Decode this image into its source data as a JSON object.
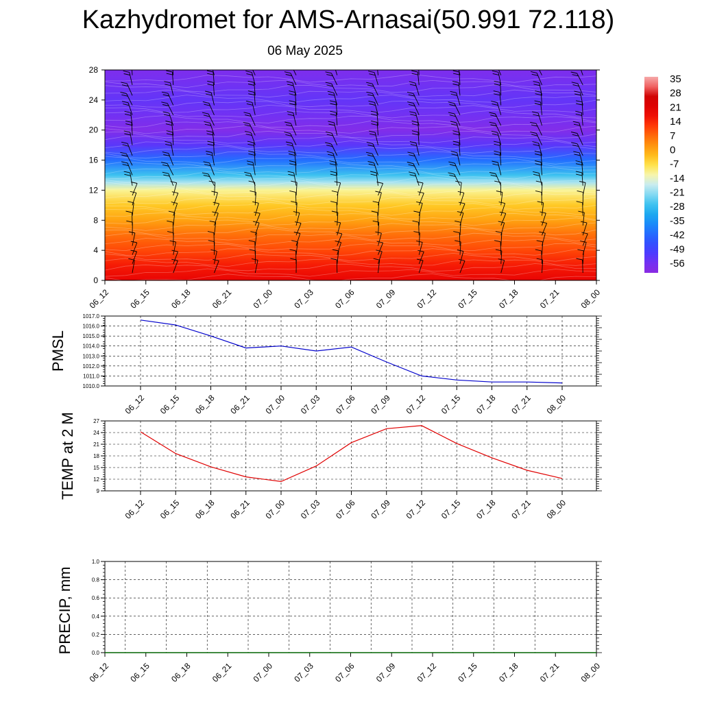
{
  "title": "Kazhydromet for AMS-Arnasai(50.991 72.118)",
  "subtitle": "06 May 2025",
  "time_labels": [
    "06_12",
    "06_15",
    "06_18",
    "06_21",
    "07_00",
    "07_03",
    "07_06",
    "07_09",
    "07_12",
    "07_15",
    "07_18",
    "07_21",
    "08_00"
  ],
  "chart_data": [
    {
      "type": "heatmap",
      "name": "temperature-height-section",
      "x": [
        "06_12",
        "06_15",
        "06_18",
        "06_21",
        "07_00",
        "07_03",
        "07_06",
        "07_09",
        "07_12",
        "07_15",
        "07_18",
        "07_21",
        "08_00"
      ],
      "y_ticks": [
        0,
        4,
        8,
        12,
        16,
        20,
        24,
        28
      ],
      "ylim": [
        0,
        28
      ],
      "colorbar_labels": [
        "35",
        "28",
        "21",
        "14",
        "7",
        "0",
        "-7",
        "-14",
        "-21",
        "-28",
        "-35",
        "-42",
        "-49",
        "-56"
      ],
      "colorbar_levels": [
        35,
        28,
        21,
        14,
        7,
        0,
        -7,
        -14,
        -21,
        -28,
        -35,
        -42,
        -49,
        -56
      ],
      "profile_heights": [
        0,
        2,
        4,
        6,
        8,
        10,
        12,
        13,
        14,
        16,
        18,
        20,
        22,
        24,
        28
      ],
      "profile_temps": [
        20,
        17,
        12,
        8,
        2,
        -3,
        -10,
        -18,
        -26,
        -40,
        -52,
        -58,
        -55,
        -53,
        -57
      ],
      "wind_barbs": true
    },
    {
      "type": "line",
      "ylabel": "PMSL",
      "ylim": [
        1010.0,
        1017.0
      ],
      "y_ticks": [
        "1017.0",
        "1016.0",
        "1015.0",
        "1014.0",
        "1013.0",
        "1012.0",
        "1011.0",
        "1010.0"
      ],
      "x": [
        "06_12",
        "06_15",
        "06_18",
        "06_21",
        "07_00",
        "07_03",
        "07_06",
        "07_09",
        "07_12",
        "07_15",
        "07_18",
        "07_21",
        "08_00"
      ],
      "values": [
        1016.6,
        1016.1,
        1015.0,
        1013.8,
        1014.0,
        1013.5,
        1013.9,
        1012.4,
        1011.0,
        1010.6,
        1010.4,
        1010.4,
        1010.3
      ],
      "color": "#0000cc"
    },
    {
      "type": "line",
      "ylabel": "TEMP at 2 M",
      "ylim": [
        9,
        27
      ],
      "y_ticks": [
        "27",
        "24",
        "21",
        "18",
        "15",
        "12",
        "9"
      ],
      "x": [
        "06_12",
        "06_15",
        "06_18",
        "06_21",
        "07_00",
        "07_03",
        "07_06",
        "07_09",
        "07_12",
        "07_15",
        "07_18",
        "07_21",
        "08_00"
      ],
      "values": [
        24.2,
        18.6,
        15.2,
        12.6,
        11.4,
        15.4,
        21.4,
        25.0,
        25.8,
        21.2,
        17.5,
        14.3,
        12.2
      ],
      "color": "#e00000"
    },
    {
      "type": "line",
      "ylabel": "PRECIP, mm",
      "ylim": [
        0.0,
        1.0
      ],
      "y_ticks": [
        "1.0",
        "0.8",
        "0.6",
        "0.4",
        "0.2",
        "0.0"
      ],
      "x": [
        "06_12",
        "06_15",
        "06_18",
        "06_21",
        "07_00",
        "07_03",
        "07_06",
        "07_09",
        "07_12",
        "07_15",
        "07_18",
        "07_21",
        "08_00"
      ],
      "values": [
        0,
        0,
        0,
        0,
        0,
        0,
        0,
        0,
        0,
        0,
        0,
        0,
        0
      ],
      "color": "#006400"
    }
  ]
}
